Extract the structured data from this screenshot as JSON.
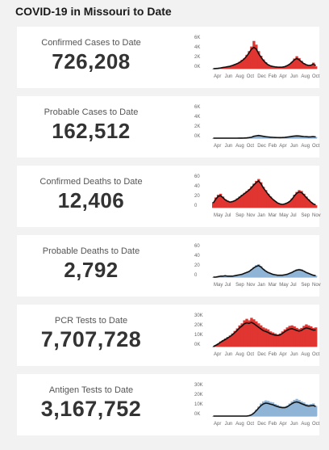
{
  "page": {
    "title": "COVID-19 in Missouri to Date"
  },
  "colors": {
    "red": "#e03530",
    "blue": "#8fb4d6",
    "line": "#111111",
    "axis": "#9a9a9a"
  },
  "panels": [
    {
      "label": "Confirmed Cases to Date",
      "value": "726,208"
    },
    {
      "label": "Probable Cases to Date",
      "value": "162,512"
    },
    {
      "label": "Confirmed Deaths to Date",
      "value": "12,406"
    },
    {
      "label": "Probable Deaths to Date",
      "value": "2,792"
    },
    {
      "label": "PCR Tests to Date",
      "value": "7,707,728"
    },
    {
      "label": "Antigen Tests to Date",
      "value": "3,167,752"
    }
  ],
  "chart_data": [
    {
      "type": "area",
      "series_color": "red",
      "x_ticks": [
        "Apr",
        "Jun",
        "Aug",
        "Oct",
        "Dec",
        "Feb",
        "Apr",
        "Jun",
        "Aug",
        "Oct"
      ],
      "y_ticks": [
        "6K",
        "4K",
        "2K",
        "0K"
      ],
      "ylim": [
        0,
        7000
      ],
      "bars": [
        0,
        50,
        100,
        200,
        300,
        400,
        500,
        600,
        800,
        1000,
        1200,
        1500,
        1900,
        2300,
        3000,
        3800,
        4800,
        6000,
        5200,
        3800,
        2800,
        2000,
        1400,
        900,
        650,
        500,
        400,
        350,
        300,
        350,
        450,
        700,
        1000,
        1500,
        2200,
        2700,
        2300,
        1700,
        1200,
        900,
        700,
        800,
        1300,
        500
      ],
      "avg": [
        0,
        40,
        80,
        150,
        250,
        330,
        420,
        520,
        680,
        880,
        1080,
        1350,
        1700,
        2100,
        2700,
        3400,
        4200,
        4600,
        4300,
        3300,
        2500,
        1800,
        1250,
        850,
        600,
        480,
        390,
        340,
        310,
        340,
        430,
        650,
        950,
        1380,
        1900,
        2200,
        1950,
        1500,
        1100,
        850,
        700,
        750,
        1000,
        650
      ]
    },
    {
      "type": "area",
      "series_color": "blue",
      "x_ticks": [
        "Apr",
        "Jun",
        "Aug",
        "Oct",
        "Dec",
        "Feb",
        "Apr",
        "Jun",
        "Aug",
        "Oct"
      ],
      "y_ticks": [
        "6K",
        "4K",
        "2K",
        "0K"
      ],
      "ylim": [
        0,
        7000
      ],
      "bars": [
        0,
        0,
        0,
        0,
        0,
        0,
        0,
        0,
        0,
        0,
        0,
        10,
        20,
        40,
        80,
        150,
        250,
        500,
        600,
        700,
        550,
        450,
        350,
        280,
        220,
        180,
        150,
        130,
        120,
        140,
        180,
        250,
        330,
        420,
        500,
        560,
        520,
        450,
        380,
        330,
        290,
        300,
        420,
        250
      ],
      "avg": [
        0,
        0,
        0,
        0,
        0,
        0,
        0,
        0,
        0,
        0,
        0,
        8,
        15,
        30,
        60,
        120,
        200,
        400,
        500,
        580,
        500,
        400,
        320,
        260,
        210,
        175,
        150,
        130,
        120,
        135,
        170,
        230,
        300,
        380,
        450,
        490,
        470,
        410,
        350,
        310,
        280,
        290,
        330,
        280
      ]
    },
    {
      "type": "area",
      "series_color": "red",
      "x_ticks": [
        "May",
        "Jul",
        "Sep",
        "Nov",
        "Jan",
        "Mar",
        "May",
        "Jul",
        "Sep",
        "Nov"
      ],
      "y_ticks": [
        "60",
        "40",
        "20",
        "0"
      ],
      "ylim": [
        0,
        70
      ],
      "bars": [
        12,
        22,
        28,
        30,
        24,
        18,
        15,
        12,
        14,
        16,
        20,
        24,
        28,
        32,
        36,
        40,
        46,
        52,
        58,
        62,
        55,
        45,
        38,
        30,
        24,
        18,
        14,
        10,
        8,
        6,
        8,
        10,
        14,
        20,
        28,
        34,
        38,
        36,
        30,
        24,
        18,
        12,
        8,
        5
      ],
      "avg": [
        10,
        18,
        24,
        26,
        22,
        17,
        14,
        12,
        13,
        15,
        18,
        22,
        26,
        30,
        34,
        38,
        43,
        49,
        54,
        58,
        52,
        43,
        36,
        29,
        23,
        18,
        14,
        10,
        8,
        7,
        8,
        10,
        13,
        18,
        25,
        31,
        34,
        33,
        28,
        22,
        17,
        12,
        8,
        6
      ]
    },
    {
      "type": "area",
      "series_color": "blue",
      "x_ticks": [
        "May",
        "Jul",
        "Sep",
        "Nov",
        "Jan",
        "Mar",
        "May",
        "Jul",
        "Sep",
        "Nov"
      ],
      "y_ticks": [
        "60",
        "40",
        "20",
        "0"
      ],
      "ylim": [
        0,
        70
      ],
      "bars": [
        0,
        0,
        1,
        2,
        3,
        3,
        2,
        2,
        2,
        3,
        4,
        5,
        6,
        8,
        10,
        13,
        17,
        22,
        26,
        28,
        24,
        18,
        14,
        10,
        8,
        6,
        5,
        4,
        4,
        4,
        5,
        6,
        8,
        11,
        14,
        17,
        18,
        17,
        14,
        11,
        8,
        6,
        4,
        3
      ],
      "avg": [
        0,
        0,
        1,
        2,
        2,
        3,
        2,
        2,
        2,
        3,
        4,
        5,
        6,
        8,
        10,
        12,
        16,
        20,
        23,
        25,
        22,
        17,
        13,
        10,
        8,
        6,
        5,
        4,
        4,
        4,
        5,
        6,
        8,
        10,
        13,
        15,
        16,
        15,
        13,
        10,
        8,
        6,
        4,
        3
      ]
    },
    {
      "type": "area",
      "series_color": "red",
      "x_ticks": [
        "Apr",
        "Jun",
        "Aug",
        "Oct",
        "Dec",
        "Feb",
        "Apr",
        "Jun",
        "Aug",
        "Oct"
      ],
      "y_ticks": [
        "30K",
        "20K",
        "10K",
        "0K"
      ],
      "ylim": [
        0,
        32000
      ],
      "bars": [
        0,
        1500,
        3000,
        5000,
        6500,
        8000,
        9500,
        11000,
        13000,
        15500,
        18000,
        21000,
        23000,
        26000,
        27500,
        26000,
        28500,
        27000,
        25000,
        23000,
        21000,
        19000,
        18000,
        17000,
        15000,
        14000,
        13000,
        12000,
        13000,
        15000,
        17000,
        19000,
        20500,
        21000,
        20000,
        18500,
        17500,
        18500,
        20500,
        22000,
        21000,
        20000,
        18500,
        19000
      ],
      "avg": [
        0,
        1200,
        2500,
        4200,
        5600,
        7000,
        8400,
        9900,
        11700,
        13800,
        16000,
        18500,
        20300,
        22500,
        23500,
        23000,
        24000,
        22800,
        21000,
        19200,
        17500,
        15800,
        15000,
        14000,
        12700,
        12000,
        11300,
        11000,
        11500,
        13000,
        14700,
        16200,
        17300,
        17700,
        17000,
        16000,
        15300,
        16000,
        17500,
        18500,
        18000,
        17200,
        16300,
        16500
      ]
    },
    {
      "type": "area",
      "series_color": "blue",
      "x_ticks": [
        "Apr",
        "Jun",
        "Aug",
        "Oct",
        "Dec",
        "Feb",
        "Apr",
        "Jun",
        "Aug",
        "Oct"
      ],
      "y_ticks": [
        "30K",
        "20K",
        "10K",
        "0K"
      ],
      "ylim": [
        0,
        32000
      ],
      "bars": [
        0,
        0,
        0,
        0,
        0,
        0,
        0,
        0,
        0,
        0,
        0,
        0,
        0,
        0,
        0,
        500,
        1500,
        3500,
        6500,
        9500,
        12500,
        14500,
        15500,
        15000,
        14000,
        13500,
        12000,
        11000,
        10000,
        9500,
        9500,
        10500,
        12500,
        14500,
        16000,
        17000,
        16000,
        14500,
        13500,
        12000,
        11500,
        12000,
        12500,
        10000
      ],
      "avg": [
        0,
        0,
        0,
        0,
        0,
        0,
        0,
        0,
        0,
        0,
        0,
        0,
        0,
        0,
        0,
        400,
        1200,
        2800,
        5200,
        7800,
        10300,
        12000,
        12800,
        12500,
        11800,
        11200,
        10200,
        9400,
        8700,
        8300,
        8300,
        9100,
        10700,
        12300,
        13500,
        14000,
        13400,
        12300,
        11400,
        10400,
        9900,
        10200,
        10500,
        9500
      ]
    }
  ]
}
